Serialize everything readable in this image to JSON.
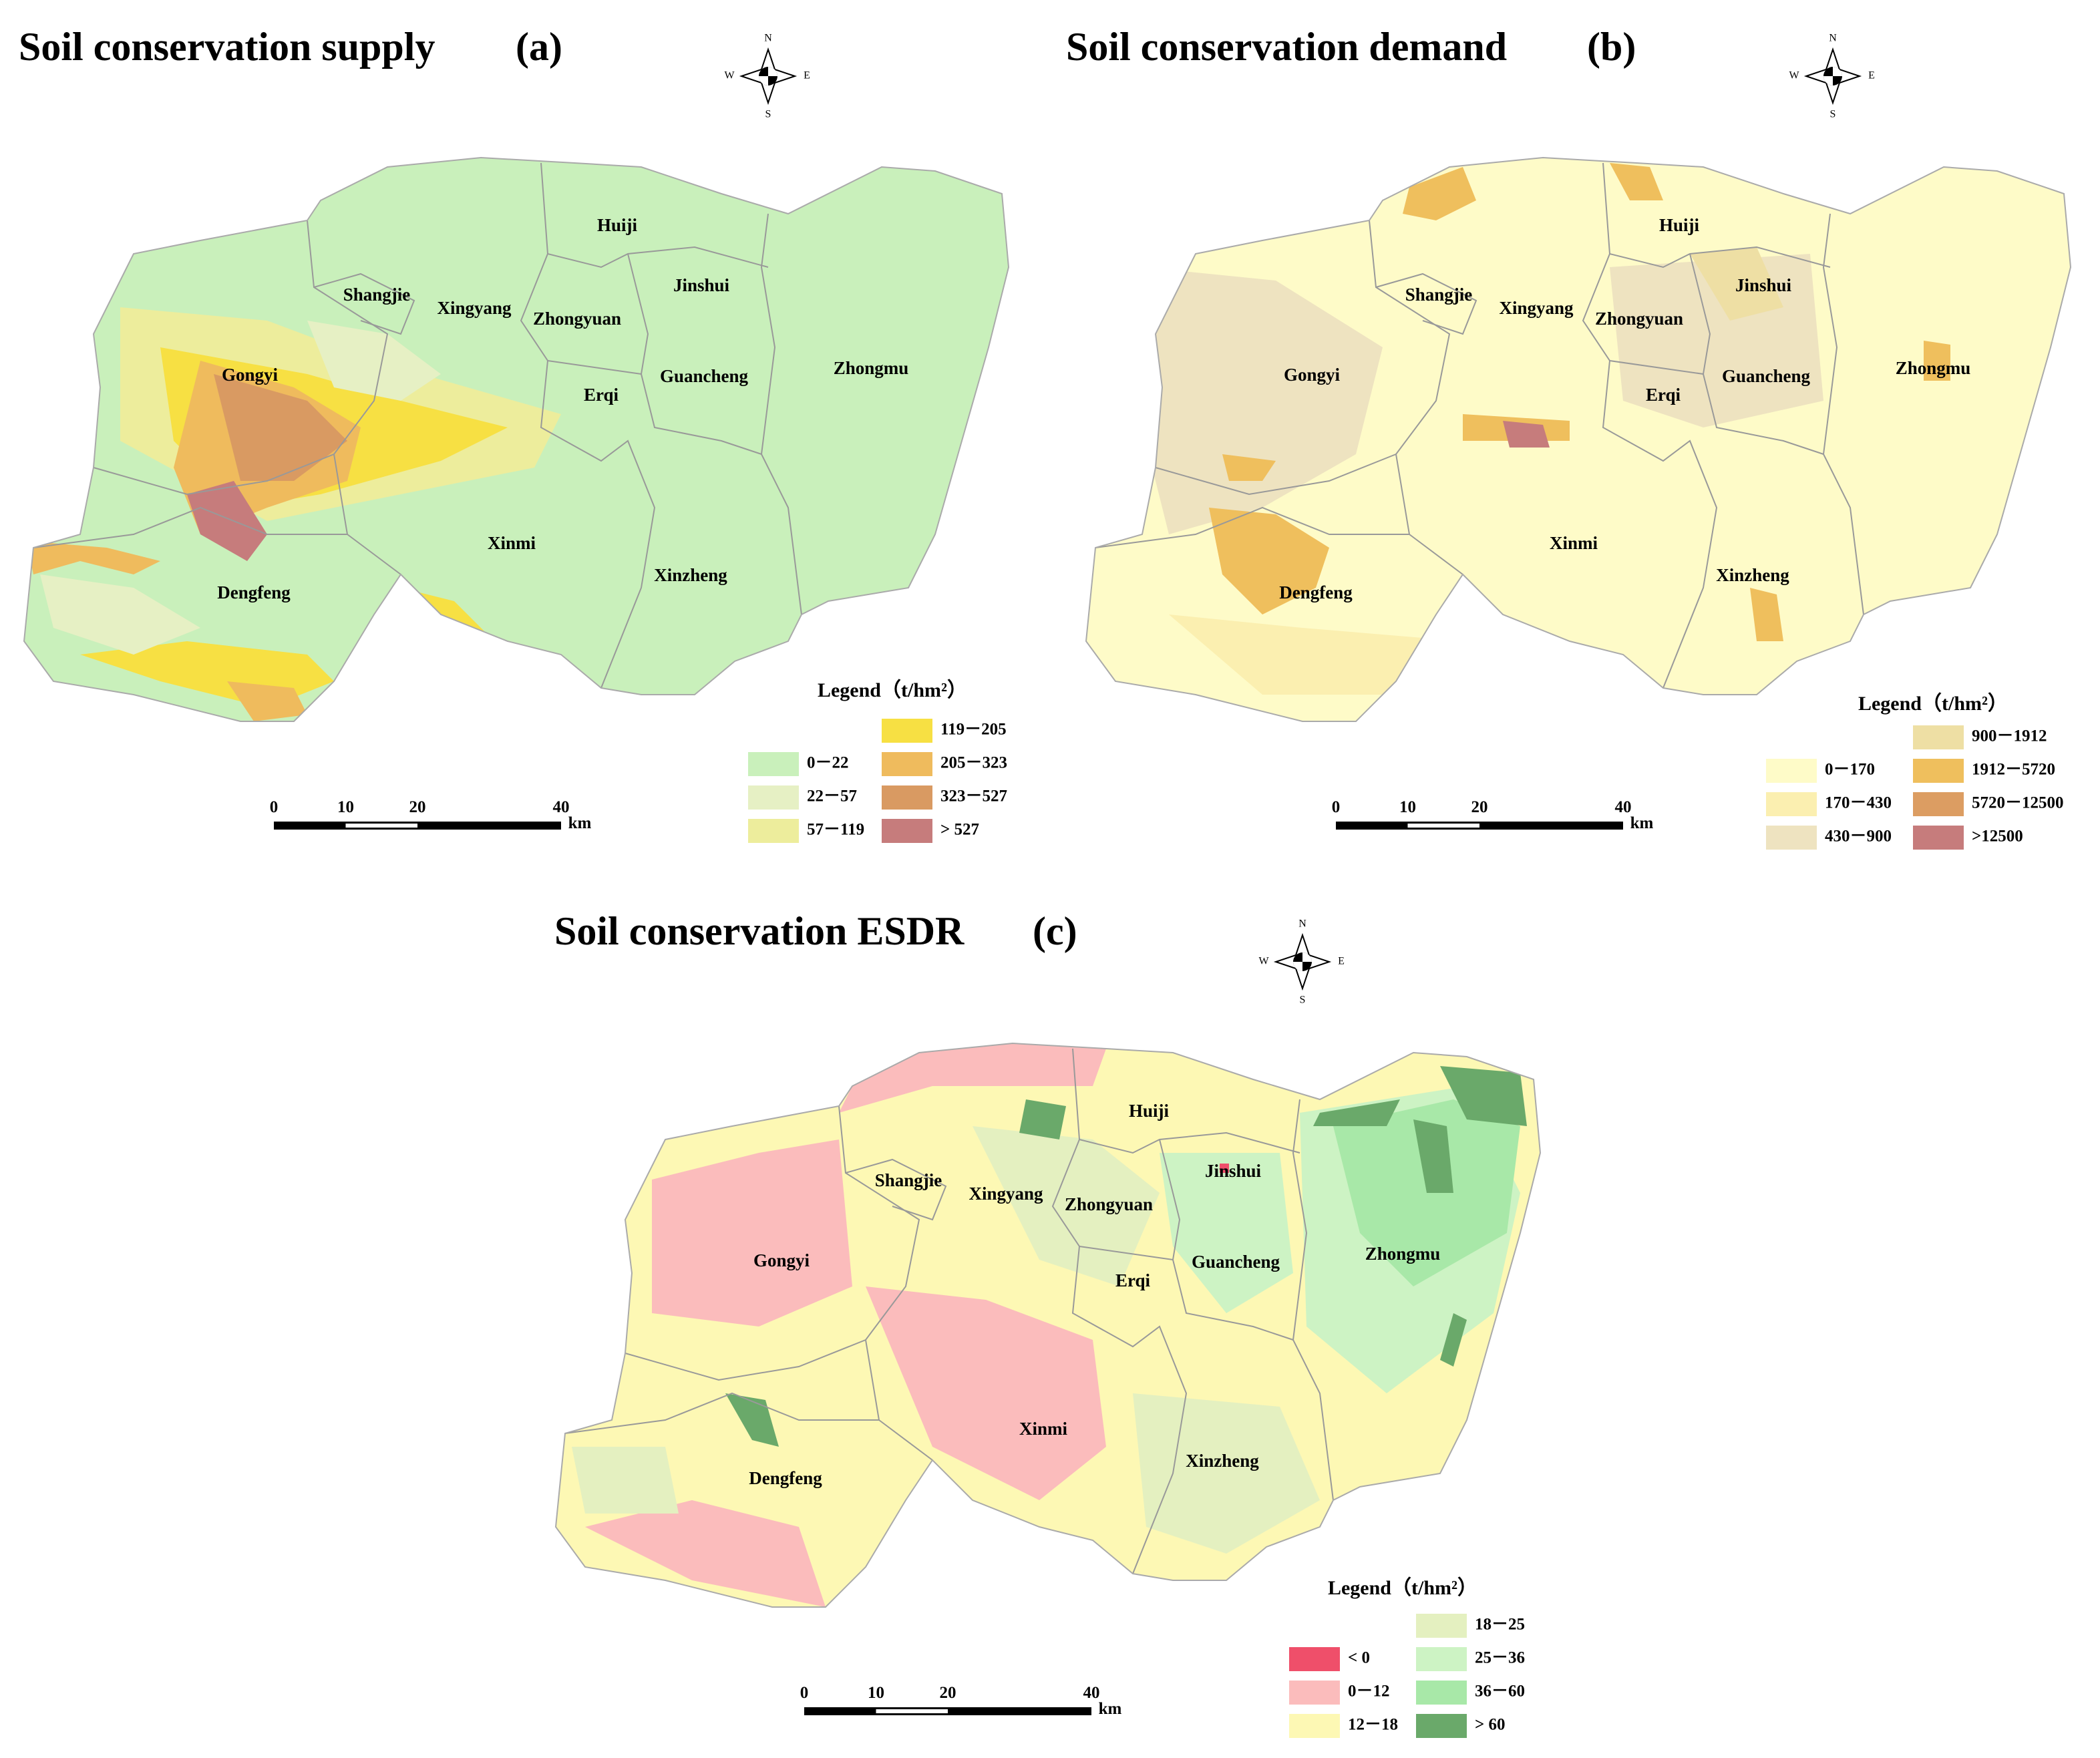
{
  "maps": [
    {
      "title": "Soil conservation supply",
      "panel": "(a)",
      "compass": {
        "n": "N",
        "s": "S",
        "e": "E",
        "w": "W"
      },
      "districts": [
        "Huiji",
        "Shangjie",
        "Xingyang",
        "Zhongyuan",
        "Jinshui",
        "Gongyi",
        "Guancheng",
        "Zhongmu",
        "Erqi",
        "Xinmi",
        "Xinzheng",
        "Dengfeng"
      ],
      "legend": {
        "title": "Legend（t/hm²）",
        "items": [
          {
            "label": "0－22",
            "color": "#c9f0bb"
          },
          {
            "label": "22－57",
            "color": "#e6f0c4"
          },
          {
            "label": "57－119",
            "color": "#eded9c"
          },
          {
            "label": "119－205",
            "color": "#f7e043"
          },
          {
            "label": "205－323",
            "color": "#efbb5d"
          },
          {
            "label": "323－527",
            "color": "#d99a62"
          },
          {
            "label": "> 527",
            "color": "#c67c7c"
          }
        ]
      },
      "scale_bar": {
        "ticks": [
          "0",
          "10",
          "20",
          "40"
        ],
        "unit": "km"
      }
    },
    {
      "title": "Soil conservation demand",
      "panel": "(b)",
      "compass": {
        "n": "N",
        "s": "S",
        "e": "E",
        "w": "W"
      },
      "districts": [
        "Huiji",
        "Shangjie",
        "Xingyang",
        "Zhongyuan",
        "Jinshui",
        "Gongyi",
        "Guancheng",
        "Zhongmu",
        "Erqi",
        "Xinmi",
        "Xinzheng",
        "Dengfeng"
      ],
      "legend": {
        "title": "Legend（t/hm²）",
        "items": [
          {
            "label": "0－170",
            "color": "#fefbc8"
          },
          {
            "label": "170－430",
            "color": "#fbefb0"
          },
          {
            "label": "430－900",
            "color": "#eee3c0"
          },
          {
            "label": "900－1912",
            "color": "#eedfa4"
          },
          {
            "label": "1912－5720",
            "color": "#efbf5d"
          },
          {
            "label": "5720－12500",
            "color": "#dc9d62"
          },
          {
            "label": ">12500",
            "color": "#c67c7c"
          }
        ]
      },
      "scale_bar": {
        "ticks": [
          "0",
          "10",
          "20",
          "40"
        ],
        "unit": "km"
      }
    },
    {
      "title": "Soil conservation ESDR",
      "panel": "(c)",
      "compass": {
        "n": "N",
        "s": "S",
        "e": "E",
        "w": "W"
      },
      "districts": [
        "Huiji",
        "Shangjie",
        "Xingyang",
        "Zhongyuan",
        "Jinshui",
        "Gongyi",
        "Guancheng",
        "Zhongmu",
        "Erqi",
        "Xinmi",
        "Xinzheng",
        "Dengfeng"
      ],
      "legend": {
        "title": "Legend（t/hm²）",
        "items": [
          {
            "label": "< 0",
            "color": "#ef4f6a"
          },
          {
            "label": "0－12",
            "color": "#fbbcbc"
          },
          {
            "label": "12－18",
            "color": "#fdf8b4"
          },
          {
            "label": "18－25",
            "color": "#e4f0c0"
          },
          {
            "label": "25－36",
            "color": "#cdf3c4"
          },
          {
            "label": "36－60",
            "color": "#a8e8a8"
          },
          {
            "label": "> 60",
            "color": "#6aa96a"
          }
        ]
      },
      "scale_bar": {
        "ticks": [
          "0",
          "10",
          "20",
          "40"
        ],
        "unit": "km"
      }
    }
  ]
}
